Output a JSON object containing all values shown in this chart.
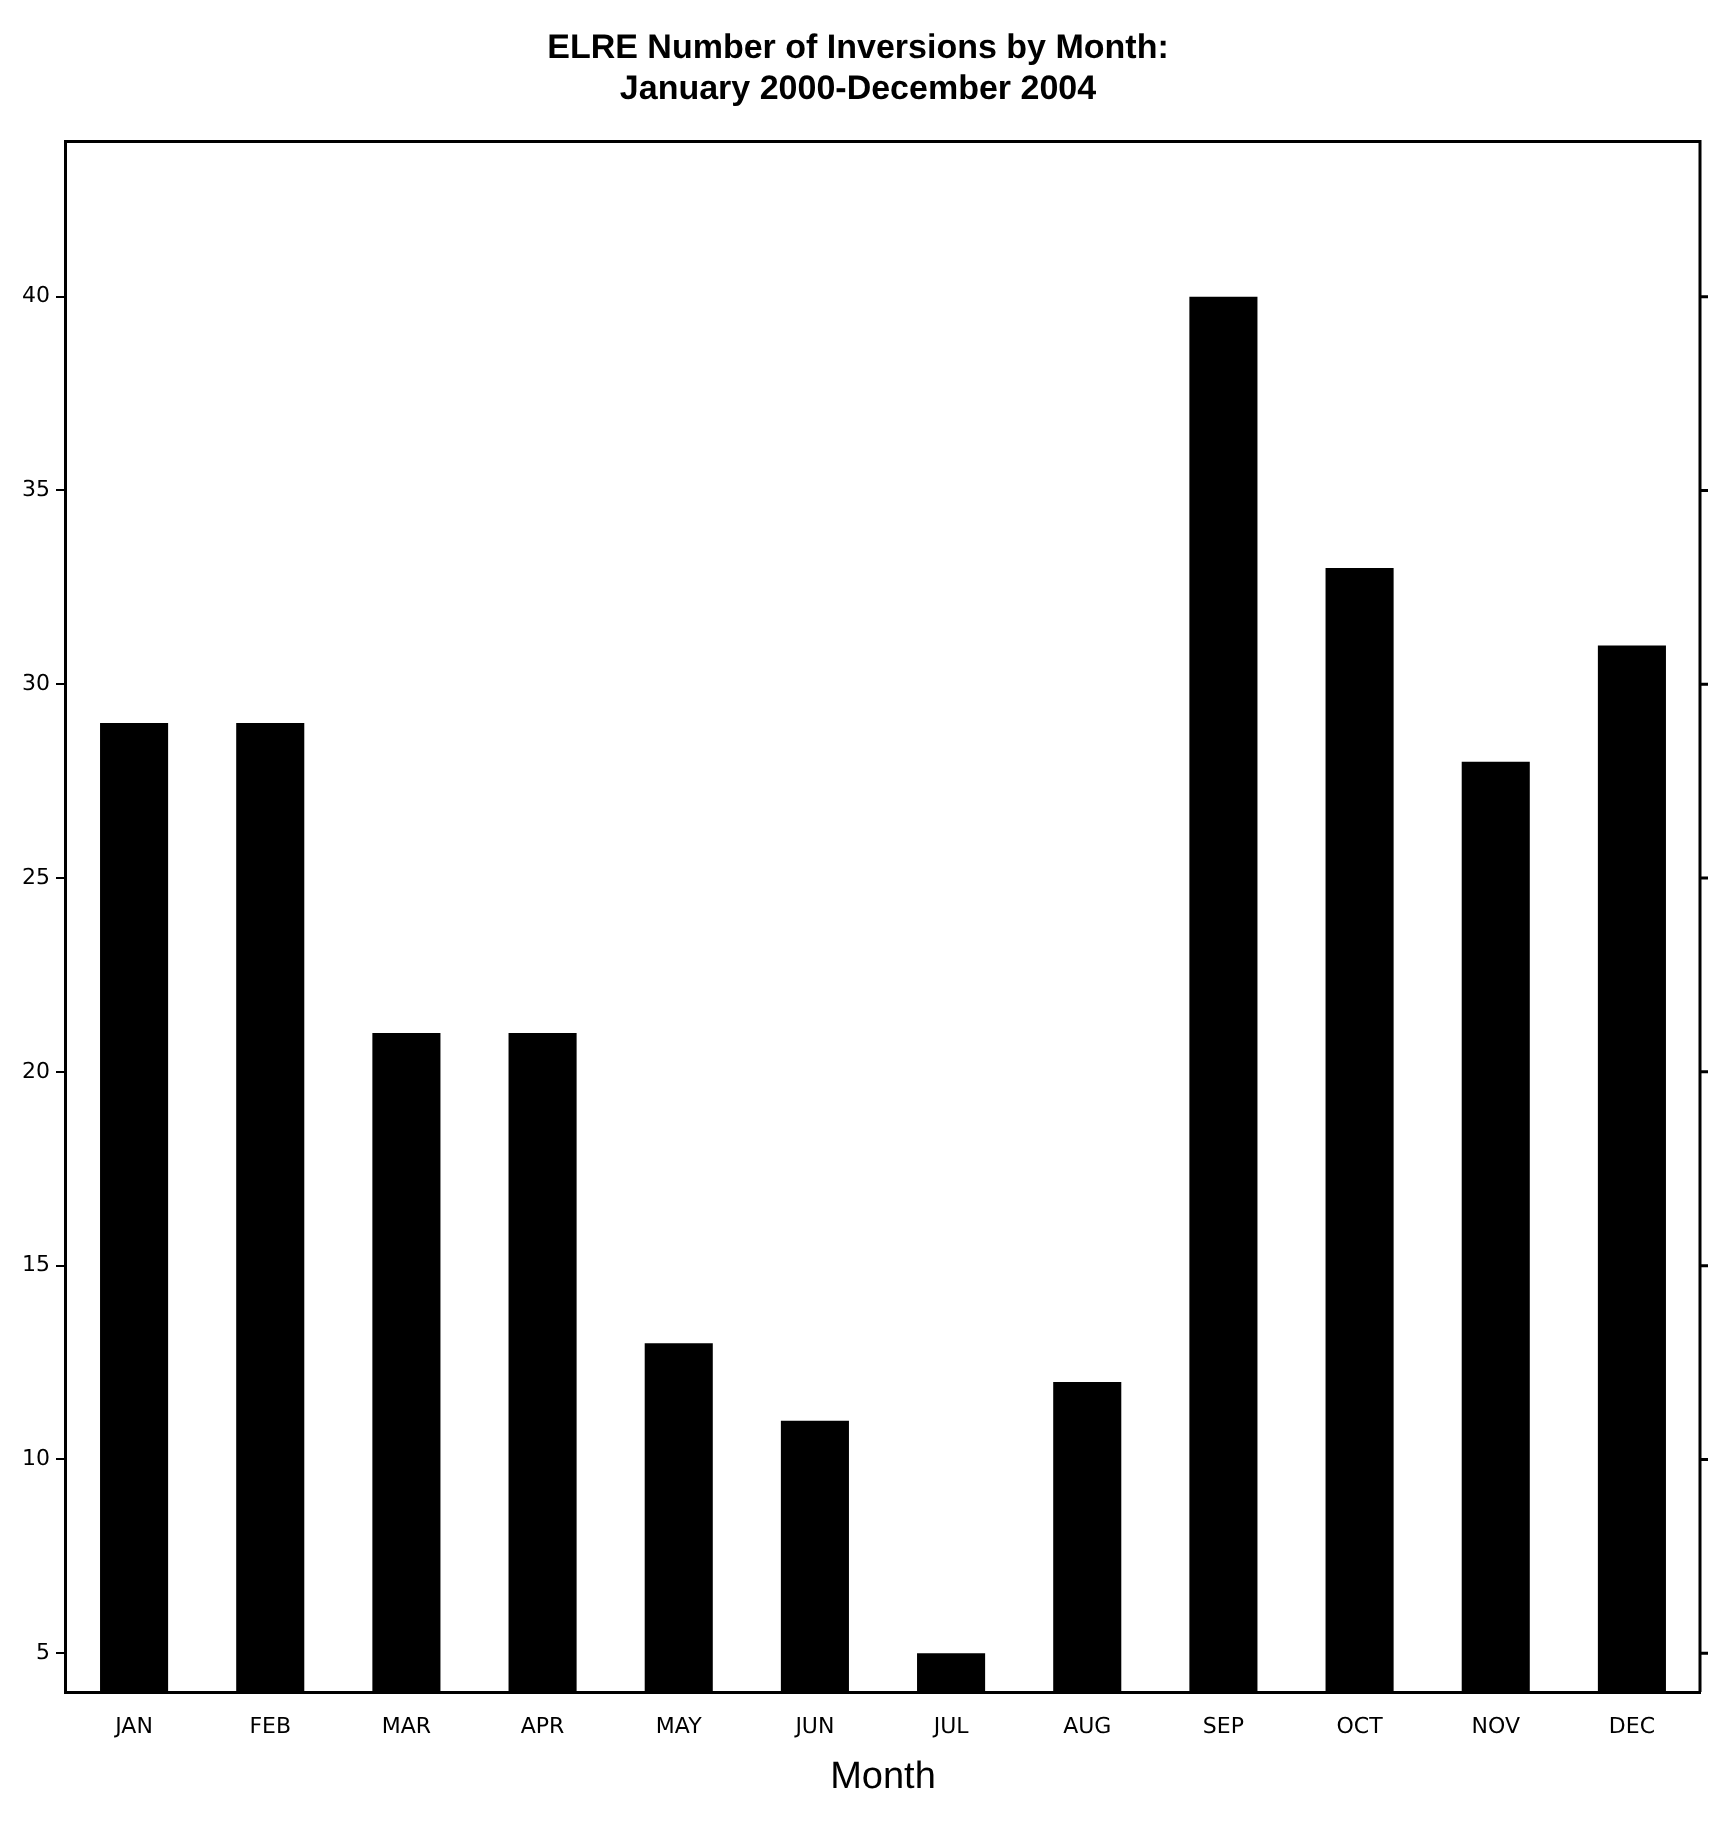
{
  "chart_data": {
    "type": "bar",
    "title": [
      "ELRE Number of Inversions by Month:",
      "January 2000-December 2004"
    ],
    "xlabel": "Month",
    "categories": [
      "JAN",
      "FEB",
      "MAR",
      "APR",
      "MAY",
      "JUN",
      "JUL",
      "AUG",
      "SEP",
      "OCT",
      "NOV",
      "DEC"
    ],
    "values": [
      29,
      29,
      21,
      21,
      13,
      11,
      5,
      12,
      40,
      33,
      28,
      31
    ],
    "color": "#000000",
    "ylim": [
      4,
      44
    ],
    "yticks": [
      5,
      10,
      15,
      20,
      25,
      30,
      35,
      40
    ],
    "grid": false,
    "legend": false
  }
}
